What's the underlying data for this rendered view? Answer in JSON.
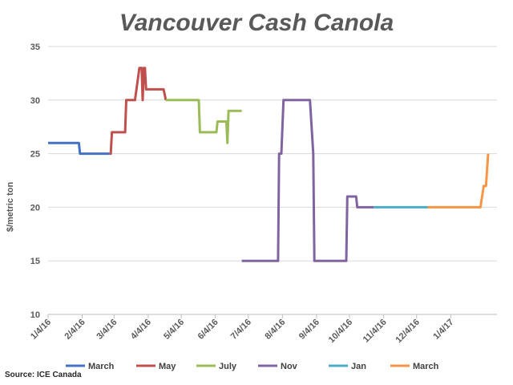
{
  "source": "Source: ICE Canada",
  "chart_data": {
    "type": "line",
    "title": "Vancouver Cash Canola",
    "xlabel": "",
    "ylabel": "$/metric ton",
    "ylim": [
      10,
      35
    ],
    "yticks": [
      10,
      15,
      20,
      25,
      30,
      35
    ],
    "x_start": "2016-01-04",
    "x_end": "2017-02-15",
    "xticks": [
      {
        "date": "2016-01-04",
        "label": "1/4/16"
      },
      {
        "date": "2016-02-04",
        "label": "2/4/16"
      },
      {
        "date": "2016-03-04",
        "label": "3/4/16"
      },
      {
        "date": "2016-04-04",
        "label": "4/4/16"
      },
      {
        "date": "2016-05-04",
        "label": "5/4/16"
      },
      {
        "date": "2016-06-04",
        "label": "6/4/16"
      },
      {
        "date": "2016-07-04",
        "label": "7/4/16"
      },
      {
        "date": "2016-08-04",
        "label": "8/4/16"
      },
      {
        "date": "2016-09-04",
        "label": "9/4/16"
      },
      {
        "date": "2016-10-04",
        "label": "10/4/16"
      },
      {
        "date": "2016-11-04",
        "label": "11/4/16"
      },
      {
        "date": "2016-12-04",
        "label": "12/4/16"
      },
      {
        "date": "2017-01-04",
        "label": "1/4/17"
      }
    ],
    "grid": true,
    "legend": "bottom",
    "series": [
      {
        "name": "March",
        "color": "#4472C4",
        "points": [
          [
            "2016-01-04",
            26
          ],
          [
            "2016-02-01",
            26
          ],
          [
            "2016-02-02",
            25
          ],
          [
            "2016-02-29",
            25
          ]
        ]
      },
      {
        "name": "May",
        "color": "#C0504D",
        "points": [
          [
            "2016-02-29",
            25
          ],
          [
            "2016-03-01",
            25
          ],
          [
            "2016-03-02",
            27
          ],
          [
            "2016-03-10",
            27
          ],
          [
            "2016-03-14",
            27
          ],
          [
            "2016-03-15",
            30
          ],
          [
            "2016-03-23",
            30
          ],
          [
            "2016-03-27",
            33
          ],
          [
            "2016-03-29",
            33
          ],
          [
            "2016-03-30",
            30
          ],
          [
            "2016-03-31",
            33
          ],
          [
            "2016-04-01",
            33
          ],
          [
            "2016-04-02",
            31
          ],
          [
            "2016-04-11",
            31
          ],
          [
            "2016-04-18",
            31
          ],
          [
            "2016-04-20",
            30
          ]
        ]
      },
      {
        "name": "July",
        "color": "#9BBB59",
        "points": [
          [
            "2016-04-20",
            30
          ],
          [
            "2016-05-01",
            30
          ],
          [
            "2016-05-20",
            30
          ],
          [
            "2016-05-21",
            27
          ],
          [
            "2016-06-05",
            27
          ],
          [
            "2016-06-06",
            28
          ],
          [
            "2016-06-14",
            28
          ],
          [
            "2016-06-15",
            26
          ],
          [
            "2016-06-16",
            29
          ],
          [
            "2016-06-28",
            29
          ]
        ]
      },
      {
        "name": "Nov",
        "color": "#8064A2",
        "points": [
          [
            "2016-06-28",
            15
          ],
          [
            "2016-07-20",
            15
          ],
          [
            "2016-07-31",
            15
          ],
          [
            "2016-08-01",
            25
          ],
          [
            "2016-08-03",
            25
          ],
          [
            "2016-08-05",
            30
          ],
          [
            "2016-08-19",
            30
          ],
          [
            "2016-08-29",
            30
          ],
          [
            "2016-09-01",
            25
          ],
          [
            "2016-09-02",
            15
          ],
          [
            "2016-09-15",
            15
          ],
          [
            "2016-10-01",
            15
          ],
          [
            "2016-10-02",
            21
          ],
          [
            "2016-10-10",
            21
          ],
          [
            "2016-10-11",
            20
          ],
          [
            "2016-10-26",
            20
          ]
        ]
      },
      {
        "name": "Jan",
        "color": "#4BACC6",
        "points": [
          [
            "2016-10-26",
            20
          ],
          [
            "2016-12-14",
            20
          ]
        ]
      },
      {
        "name": "March",
        "color": "#F79646",
        "points": [
          [
            "2016-12-14",
            20
          ],
          [
            "2017-01-31",
            20
          ],
          [
            "2017-02-03",
            22
          ],
          [
            "2017-02-05",
            22
          ],
          [
            "2017-02-07",
            25
          ]
        ]
      }
    ]
  }
}
